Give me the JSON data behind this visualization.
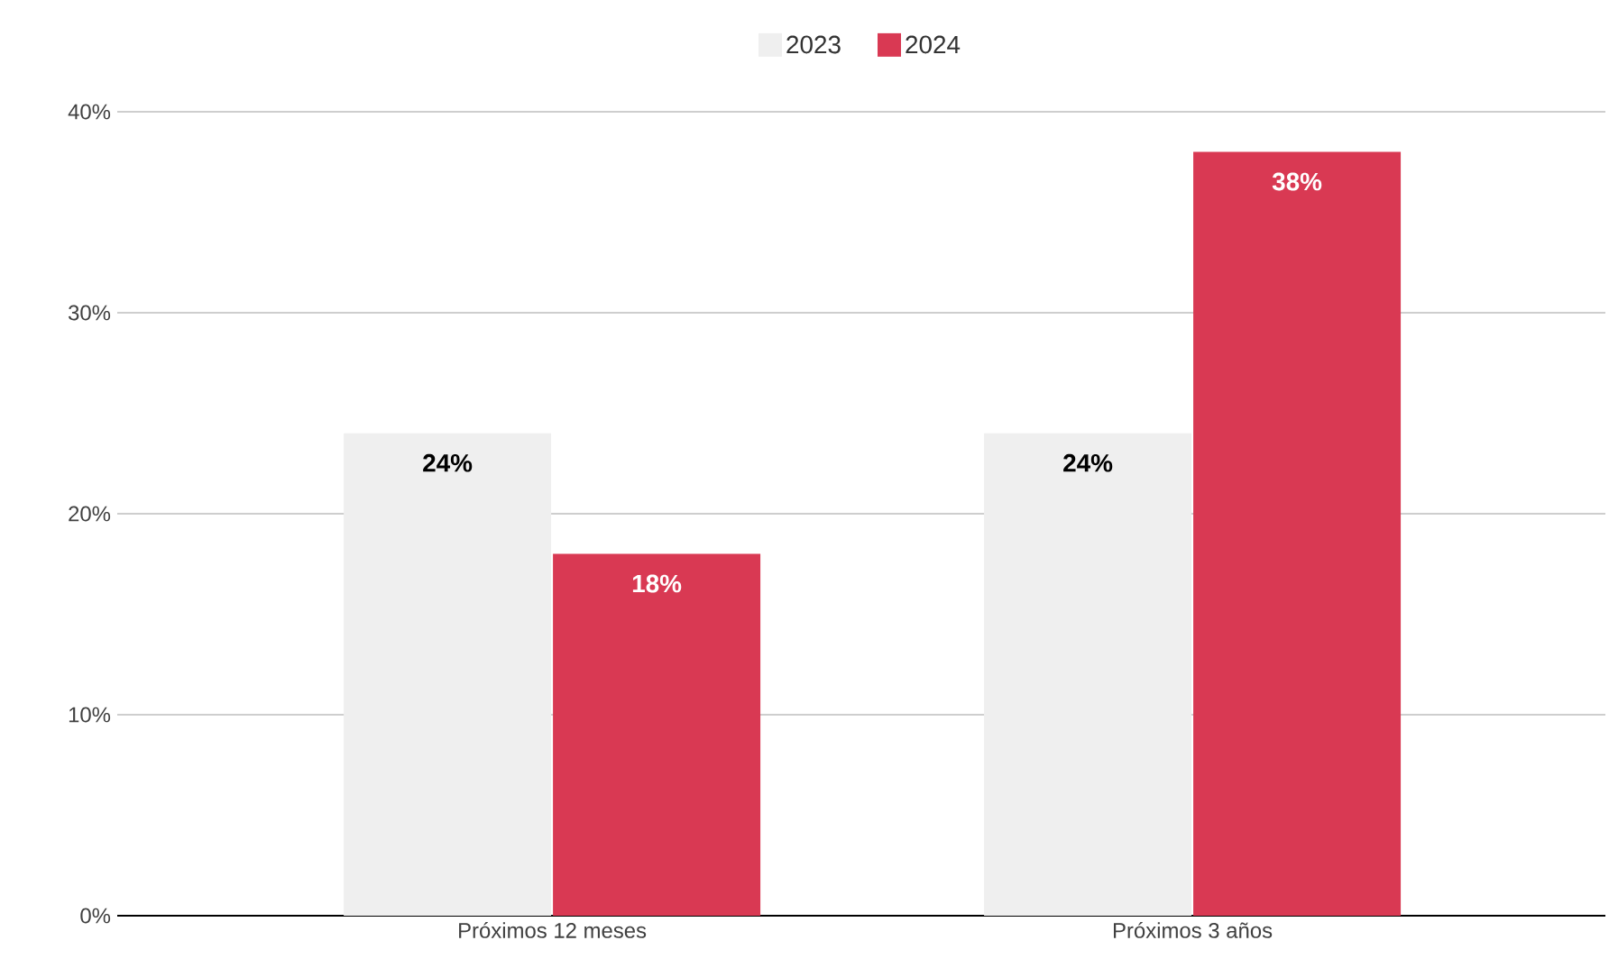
{
  "chart_data": {
    "type": "bar",
    "categories": [
      "Próximos 12 meses",
      "Próximos 3 años"
    ],
    "series": [
      {
        "name": "2023",
        "color": "#efefef",
        "values": [
          24,
          24
        ],
        "value_labels": [
          "24%",
          "24%"
        ]
      },
      {
        "name": "2024",
        "color": "#d93953",
        "values": [
          18,
          38
        ],
        "value_labels": [
          "18%",
          "38%"
        ]
      }
    ],
    "ylim": [
      0,
      40
    ],
    "yticks": [
      {
        "value": 0,
        "label": "0%"
      },
      {
        "value": 10,
        "label": "10%"
      },
      {
        "value": 20,
        "label": "20%"
      },
      {
        "value": 30,
        "label": "30%"
      },
      {
        "value": 40,
        "label": "40%"
      }
    ],
    "grid": "y",
    "legend": "top"
  }
}
